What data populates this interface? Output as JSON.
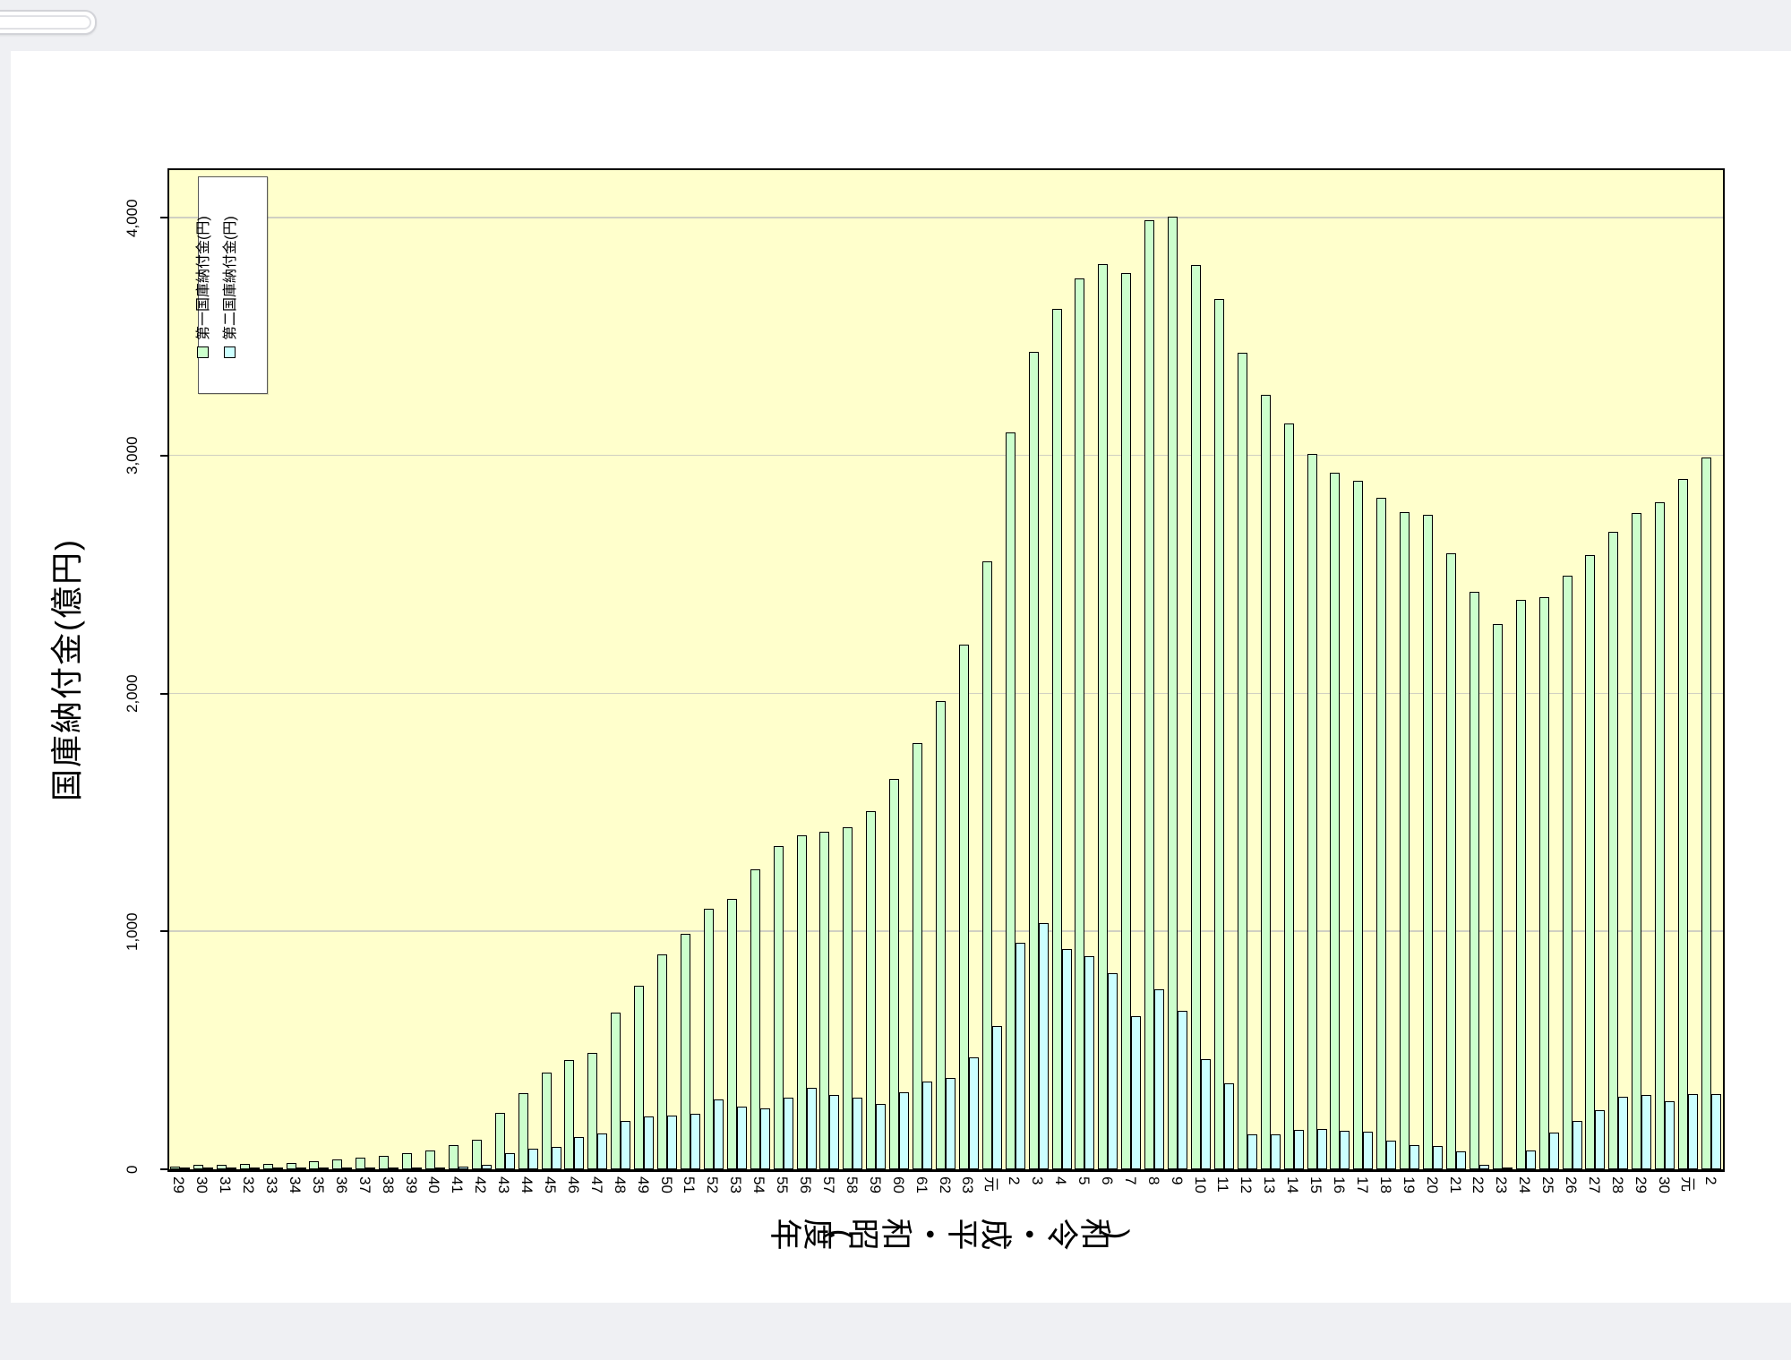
{
  "ui": {
    "background_color": "#eff0f3",
    "page_color": "#ffffff",
    "scroll_pill": {
      "visible": true
    }
  },
  "chart_data": {
    "type": "bar",
    "title": "",
    "xlabel": "年度(昭和・平成・令和)",
    "ylabel": "国庫納付金(億円)",
    "y_ticks": [
      "0",
      "1,000",
      "2,000",
      "3,000",
      "4,000"
    ],
    "y_tick_values": [
      0,
      1000,
      2000,
      3000,
      4000
    ],
    "ylim": [
      0,
      4200
    ],
    "grid": true,
    "legend_position": "top-left-inside",
    "plot_bg": "#ffffcc",
    "gridline_color": "#d0d0c2",
    "categories": [
      "29",
      "30",
      "31",
      "32",
      "33",
      "34",
      "35",
      "36",
      "37",
      "38",
      "39",
      "40",
      "41",
      "42",
      "43",
      "44",
      "45",
      "46",
      "47",
      "48",
      "49",
      "50",
      "51",
      "52",
      "53",
      "54",
      "55",
      "56",
      "57",
      "58",
      "59",
      "60",
      "61",
      "62",
      "63",
      "元",
      "2",
      "3",
      "4",
      "5",
      "6",
      "7",
      "8",
      "9",
      "10",
      "11",
      "12",
      "13",
      "14",
      "15",
      "16",
      "17",
      "18",
      "19",
      "20",
      "21",
      "22",
      "23",
      "24",
      "25",
      "26",
      "27",
      "28",
      "29",
      "30",
      "元",
      "2"
    ],
    "series": [
      {
        "name": "第一国庫納付金(円)",
        "color": "#ccffcc",
        "values": [
          10,
          18,
          18,
          24,
          24,
          28,
          35,
          43,
          50,
          57,
          68,
          80,
          100,
          125,
          236,
          321,
          405,
          459,
          490,
          657,
          770,
          902,
          990,
          1097,
          1137,
          1260,
          1358,
          1404,
          1419,
          1439,
          1507,
          1642,
          1792,
          1968,
          2206,
          2555,
          3097,
          3435,
          3615,
          3743,
          3806,
          3766,
          3990,
          4003,
          3803,
          3659,
          3432,
          3255,
          3134,
          3008,
          2929,
          2893,
          2821,
          2761,
          2750,
          2589,
          2428,
          2293,
          2394,
          2406,
          2494,
          2582,
          2679,
          2758,
          2802,
          2901,
          2991
        ]
      },
      {
        "name": "第二国庫納付金(円)",
        "color": "#ccffff",
        "values": [
          2,
          2,
          2,
          2,
          2,
          2,
          2,
          2,
          2,
          3,
          4,
          6,
          10,
          20,
          66,
          88,
          94,
          135,
          151,
          204,
          223,
          227,
          232,
          295,
          265,
          255,
          301,
          343,
          311,
          301,
          276,
          322,
          368,
          385,
          469,
          604,
          952,
          1036,
          927,
          894,
          826,
          643,
          757,
          668,
          463,
          362,
          145,
          148,
          166,
          170,
          163,
          159,
          119,
          103,
          97,
          74,
          17,
          4,
          80,
          154,
          203,
          249,
          306,
          313,
          285,
          315,
          318
        ]
      }
    ]
  }
}
